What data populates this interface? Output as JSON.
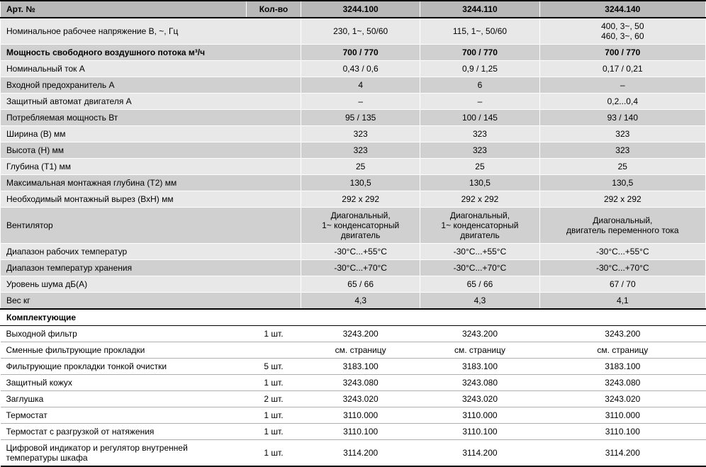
{
  "header": {
    "label": "Арт. №",
    "qty": "Кол-во",
    "c1": "3244.100",
    "c2": "3244.110",
    "c3": "3244.140"
  },
  "rows": [
    {
      "label": "Номинальное рабочее напряжение В, ~, Гц",
      "c1": "230, 1~, 50/60",
      "c2": "115, 1~, 50/60",
      "c3": "400, 3~, 50\n460, 3~, 60",
      "cls": "row-light"
    },
    {
      "label": "Мощность свободного воздушного потока м³/ч",
      "c1": "700 / 770",
      "c2": "700 / 770",
      "c3": "700 / 770",
      "cls": "row-dark bold-row"
    },
    {
      "label": "Номинальный ток А",
      "c1": "0,43 / 0,6",
      "c2": "0,9 / 1,25",
      "c3": "0,17 / 0,21",
      "cls": "row-light"
    },
    {
      "label": "Входной предохранитель А",
      "c1": "4",
      "c2": "6",
      "c3": "–",
      "cls": "row-dark"
    },
    {
      "label": "Защитный автомат двигателя А",
      "c1": "–",
      "c2": "–",
      "c3": "0,2...0,4",
      "cls": "row-light"
    },
    {
      "label": "Потребляемая мощность Вт",
      "c1": "95 / 135",
      "c2": "100 / 145",
      "c3": "93 / 140",
      "cls": "row-dark"
    },
    {
      "label": "Ширина (В) мм",
      "c1": "323",
      "c2": "323",
      "c3": "323",
      "cls": "row-light"
    },
    {
      "label": "Высота (Н) мм",
      "c1": "323",
      "c2": "323",
      "c3": "323",
      "cls": "row-dark"
    },
    {
      "label": "Глубина (Т1) мм",
      "c1": "25",
      "c2": "25",
      "c3": "25",
      "cls": "row-light"
    },
    {
      "label": "Максимальная монтажная глубина (Т2) мм",
      "c1": "130,5",
      "c2": "130,5",
      "c3": "130,5",
      "cls": "row-dark"
    },
    {
      "label": "Необходимый монтажный вырез (ВхН) мм",
      "c1": "292 x 292",
      "c2": "292 x 292",
      "c3": "292 x 292",
      "cls": "row-light"
    },
    {
      "label": "Вентилятор",
      "c1": "Диагональный,\n1~ конденсаторный\nдвигатель",
      "c2": "Диагональный,\n1~ конденсаторный\nдвигатель",
      "c3": "Диагональный,\nдвигатель переменного тока",
      "cls": "row-dark"
    },
    {
      "label": "Диапазон рабочих температур",
      "c1": "-30°C...+55°C",
      "c2": "-30°C...+55°C",
      "c3": "-30°C...+55°C",
      "cls": "row-light"
    },
    {
      "label": "Диапазон температур хранения",
      "c1": "-30°C...+70°C",
      "c2": "-30°C...+70°C",
      "c3": "-30°C...+70°C",
      "cls": "row-dark"
    },
    {
      "label": "Уровень шума дБ(А)",
      "c1": "65 / 66",
      "c2": "65 / 66",
      "c3": "67 / 70",
      "cls": "row-light"
    },
    {
      "label": "Вес кг",
      "c1": "4,3",
      "c2": "4,3",
      "c3": "4,1",
      "cls": "row-dark"
    }
  ],
  "sectionHeader": "Комплектующие",
  "accessories": [
    {
      "label": "Выходной фильтр",
      "qty": "1 шт.",
      "c1": "3243.200",
      "c2": "3243.200",
      "c3": "3243.200"
    },
    {
      "label": "Сменные фильтрующие прокладки",
      "qty": "",
      "c1": "см. страницу",
      "c2": "см. страницу",
      "c3": "см. страницу"
    },
    {
      "label": "Фильтрующие прокладки тонкой очистки",
      "qty": "5 шт.",
      "c1": "3183.100",
      "c2": "3183.100",
      "c3": "3183.100"
    },
    {
      "label": "Защитный кожух",
      "qty": "1 шт.",
      "c1": "3243.080",
      "c2": "3243.080",
      "c3": "3243.080"
    },
    {
      "label": "Заглушка",
      "qty": "2 шт.",
      "c1": "3243.020",
      "c2": "3243.020",
      "c3": "3243.020"
    },
    {
      "label": "Термостат",
      "qty": "1 шт.",
      "c1": "3110.000",
      "c2": "3110.000",
      "c3": "3110.000"
    },
    {
      "label": "Термостат с разгрузкой от натяжения",
      "qty": "1 шт.",
      "c1": "3110.100",
      "c2": "3110.100",
      "c3": "3110.100"
    },
    {
      "label": "Цифровой индикатор и регулятор внутренней температуры шкафа",
      "qty": "1 шт.",
      "c1": "3114.200",
      "c2": "3114.200",
      "c3": "3114.200"
    }
  ]
}
